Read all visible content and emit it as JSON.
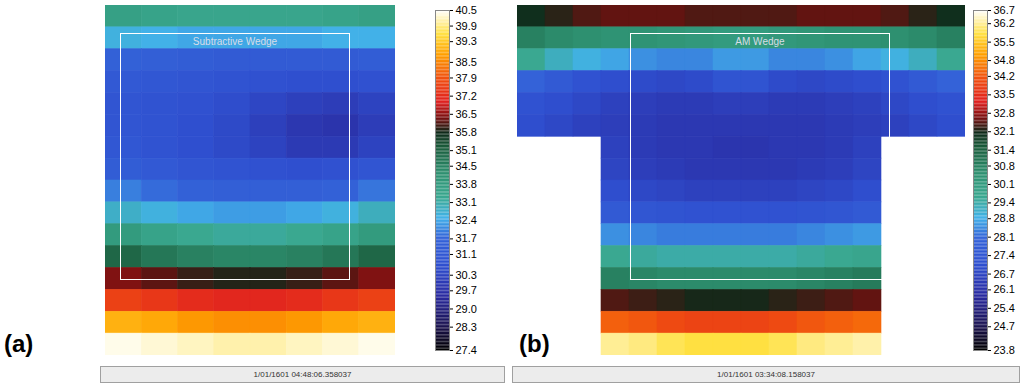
{
  "chart_data": [
    {
      "type": "heatmap",
      "title": "(a)",
      "annotation": "Subtractive Wedge",
      "caption": "1/01/1601 04:48:06.358037",
      "tick_labels": false,
      "cells": [
        [
          33.6,
          33.5,
          33.4,
          33.4,
          33.4,
          33.4,
          33.5,
          33.6
        ],
        [
          32.6,
          32.5,
          32.4,
          32.4,
          32.4,
          32.4,
          32.5,
          32.5
        ],
        [
          31.6,
          31.5,
          31.4,
          31.3,
          31.3,
          31.3,
          31.3,
          31.4
        ],
        [
          31.2,
          31.1,
          31.0,
          30.9,
          30.8,
          30.7,
          30.7,
          30.8
        ],
        [
          31.0,
          30.9,
          30.8,
          30.6,
          30.4,
          30.2,
          30.1,
          30.3
        ],
        [
          31.0,
          30.9,
          30.7,
          30.5,
          30.2,
          29.9,
          29.8,
          30.1
        ],
        [
          31.1,
          30.9,
          30.7,
          30.5,
          30.3,
          30.0,
          30.0,
          30.3
        ],
        [
          31.4,
          31.2,
          31.0,
          30.9,
          30.8,
          30.7,
          30.8,
          31.0
        ],
        [
          32.0,
          31.8,
          31.6,
          31.5,
          31.5,
          31.5,
          31.6,
          31.9
        ],
        [
          32.8,
          32.6,
          32.4,
          32.3,
          32.3,
          32.4,
          32.6,
          32.9
        ],
        [
          33.8,
          33.5,
          33.3,
          33.2,
          33.2,
          33.3,
          33.5,
          33.8
        ],
        [
          35.0,
          34.7,
          34.5,
          34.4,
          34.4,
          34.5,
          34.7,
          35.0
        ],
        [
          36.4,
          36.2,
          36.0,
          35.9,
          35.9,
          36.0,
          36.2,
          36.4
        ],
        [
          37.6,
          37.4,
          37.2,
          37.1,
          37.1,
          37.2,
          37.4,
          37.6
        ],
        [
          39.0,
          38.9,
          38.7,
          38.6,
          38.6,
          38.7,
          38.9,
          39.0
        ],
        [
          40.4,
          40.3,
          40.2,
          40.1,
          40.1,
          40.2,
          40.3,
          40.4
        ]
      ],
      "color_bar": {
        "range": [
          27.4,
          40.5
        ],
        "ticks": [
          40.5,
          39.9,
          39.3,
          38.5,
          37.9,
          37.2,
          36.5,
          35.8,
          35.1,
          34.5,
          33.8,
          33.1,
          32.4,
          31.7,
          31.1,
          30.3,
          29.7,
          {
            "value": 29,
            "label": "29.0"
          },
          28.3,
          27.4
        ]
      }
    },
    {
      "type": "heatmap",
      "title": "(b)",
      "annotation": "AM Wedge",
      "caption": "1/01/1601 03:34:08.158037",
      "tick_labels": false,
      "cells": [
        [
          32.0,
          32.2,
          32.4,
          32.5,
          32.5,
          32.5,
          32.4,
          32.4,
          32.4,
          32.4,
          32.5,
          32.5,
          32.5,
          32.4,
          32.2,
          32.0
        ],
        [
          30.8,
          30.6,
          30.5,
          30.4,
          30.4,
          30.3,
          30.2,
          30.1,
          30.1,
          30.2,
          30.3,
          30.4,
          30.4,
          30.5,
          30.6,
          30.8
        ],
        [
          29.6,
          29.2,
          28.9,
          28.7,
          28.5,
          28.4,
          28.4,
          28.6,
          28.6,
          28.4,
          28.4,
          28.5,
          28.7,
          28.9,
          29.2,
          29.6
        ],
        [
          28.0,
          27.6,
          27.2,
          27.0,
          26.9,
          26.8,
          26.9,
          27.3,
          27.3,
          26.9,
          26.8,
          26.9,
          27.0,
          27.2,
          27.6,
          28.0
        ],
        [
          27.2,
          27.0,
          26.8,
          26.6,
          26.5,
          26.4,
          26.4,
          26.5,
          26.5,
          26.4,
          26.4,
          26.5,
          26.6,
          26.8,
          27.0,
          27.2
        ],
        [
          27.0,
          26.8,
          26.6,
          26.5,
          26.4,
          26.3,
          26.3,
          26.3,
          26.3,
          26.3,
          26.3,
          26.4,
          26.5,
          26.6,
          26.8,
          27.0
        ],
        [
          null,
          null,
          null,
          26.6,
          26.4,
          26.3,
          26.3,
          26.2,
          26.2,
          26.3,
          26.3,
          26.4,
          26.6,
          null,
          null,
          null
        ],
        [
          null,
          null,
          null,
          26.7,
          26.5,
          26.4,
          26.3,
          26.3,
          26.3,
          26.3,
          26.4,
          26.5,
          26.7,
          null,
          null,
          null
        ],
        [
          null,
          null,
          null,
          27.0,
          26.8,
          26.7,
          26.6,
          26.6,
          26.6,
          26.6,
          26.7,
          26.8,
          27.0,
          null,
          null,
          null
        ],
        [
          null,
          null,
          null,
          27.6,
          27.4,
          27.3,
          27.2,
          27.2,
          27.2,
          27.2,
          27.3,
          27.4,
          27.6,
          null,
          null,
          null
        ],
        [
          null,
          null,
          null,
          28.5,
          28.4,
          28.3,
          28.3,
          28.3,
          28.3,
          28.3,
          28.4,
          28.5,
          28.6,
          null,
          null,
          null
        ],
        [
          null,
          null,
          null,
          29.6,
          29.5,
          29.4,
          29.4,
          29.4,
          29.4,
          29.4,
          29.5,
          29.6,
          29.7,
          null,
          null,
          null
        ],
        [
          null,
          null,
          null,
          30.8,
          30.7,
          30.6,
          30.6,
          30.6,
          30.6,
          30.6,
          30.7,
          30.8,
          30.9,
          null,
          null,
          null
        ],
        [
          null,
          null,
          null,
          32.4,
          32.3,
          32.2,
          32.1,
          32.1,
          32.1,
          32.2,
          32.3,
          32.4,
          32.5,
          null,
          null,
          null
        ],
        [
          null,
          null,
          null,
          34.3,
          34.2,
          34.0,
          33.9,
          33.9,
          33.9,
          34.0,
          34.2,
          34.3,
          34.4,
          null,
          null,
          null
        ],
        [
          null,
          null,
          null,
          36.2,
          36.1,
          35.9,
          35.8,
          35.8,
          35.8,
          35.9,
          36.1,
          36.2,
          36.3,
          null,
          null,
          null
        ]
      ],
      "color_bar": {
        "range": [
          23.8,
          36.7
        ],
        "ticks": [
          36.7,
          36.2,
          35.5,
          34.8,
          34.2,
          33.5,
          32.8,
          32.1,
          31.4,
          30.8,
          30.1,
          29.4,
          28.8,
          28.1,
          27.4,
          26.7,
          26.1,
          25.4,
          24.7,
          23.8
        ]
      }
    }
  ]
}
